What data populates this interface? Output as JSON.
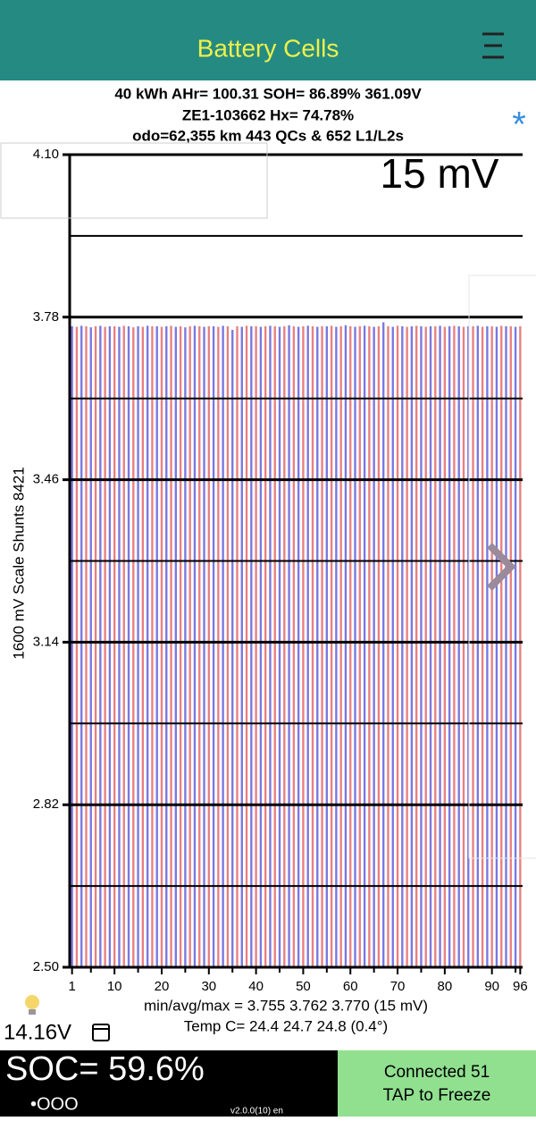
{
  "header": {
    "title": "Battery Cells"
  },
  "info": {
    "lines": [
      "40 kWh  AHr= 100.31  SOH= 86.89%   361.09V",
      "ZE1-103662   Hx= 74.78%",
      "odo=62,355 km 443 QCs & 652 L1/L2s"
    ]
  },
  "chart_data": {
    "type": "bar",
    "annotation": "15 mV",
    "y_label": "1600 mV Scale   Shunts 8421",
    "x": [
      1,
      2,
      3,
      4,
      5,
      6,
      7,
      8,
      9,
      10,
      11,
      12,
      13,
      14,
      15,
      16,
      17,
      18,
      19,
      20,
      21,
      22,
      23,
      24,
      25,
      26,
      27,
      28,
      29,
      30,
      31,
      32,
      33,
      34,
      35,
      36,
      37,
      38,
      39,
      40,
      41,
      42,
      43,
      44,
      45,
      46,
      47,
      48,
      49,
      50,
      51,
      52,
      53,
      54,
      55,
      56,
      57,
      58,
      59,
      60,
      61,
      62,
      63,
      64,
      65,
      66,
      67,
      68,
      69,
      70,
      71,
      72,
      73,
      74,
      75,
      76,
      77,
      78,
      79,
      80,
      81,
      82,
      83,
      84,
      85,
      86,
      87,
      88,
      89,
      90,
      91,
      92,
      93,
      94,
      95,
      96
    ],
    "values": [
      3.762,
      3.761,
      3.763,
      3.762,
      3.76,
      3.762,
      3.763,
      3.761,
      3.762,
      3.762,
      3.761,
      3.763,
      3.762,
      3.76,
      3.762,
      3.761,
      3.763,
      3.762,
      3.762,
      3.761,
      3.762,
      3.763,
      3.761,
      3.762,
      3.76,
      3.762,
      3.763,
      3.762,
      3.761,
      3.762,
      3.762,
      3.761,
      3.763,
      3.762,
      3.755,
      3.762,
      3.761,
      3.763,
      3.762,
      3.762,
      3.761,
      3.762,
      3.763,
      3.762,
      3.761,
      3.762,
      3.764,
      3.762,
      3.761,
      3.762,
      3.763,
      3.762,
      3.761,
      3.762,
      3.762,
      3.763,
      3.761,
      3.762,
      3.764,
      3.762,
      3.761,
      3.762,
      3.763,
      3.762,
      3.761,
      3.762,
      3.77,
      3.762,
      3.761,
      3.763,
      3.762,
      3.761,
      3.762,
      3.763,
      3.762,
      3.761,
      3.762,
      3.762,
      3.763,
      3.761,
      3.762,
      3.763,
      3.762,
      3.761,
      3.762,
      3.762,
      3.763,
      3.761,
      3.762,
      3.762,
      3.761,
      3.763,
      3.762,
      3.762,
      3.761,
      3.762
    ],
    "bar_colors": [
      "#7878e0",
      "#e88080"
    ],
    "xlim": [
      0.5,
      96.5
    ],
    "xticks": [
      1,
      10,
      20,
      30,
      40,
      50,
      60,
      70,
      80,
      90,
      96
    ],
    "minor_xticks": [
      5,
      15,
      25,
      35,
      45,
      55,
      65,
      75,
      85,
      95
    ],
    "ylim": [
      2.5,
      4.1
    ],
    "yticks": [
      {
        "value": 4.1,
        "label": "4.10"
      },
      3.78,
      3.46,
      3.14,
      2.82,
      {
        "value": 2.5,
        "label": "2.50"
      }
    ],
    "minor_yticks": [
      3.94,
      3.62,
      3.3,
      2.98,
      2.66
    ],
    "grid": true
  },
  "stats": {
    "lines": [
      "min/avg/max = 3.755 3.762 3.770  (15 mV)",
      "Temp C= 24.4  24.7  24.8  (0.4°)"
    ]
  },
  "footer": {
    "aux_voltage": "14.16V",
    "soc": "SOC= 59.6%",
    "page_dots": "•OOO",
    "version": "v2.0.0(10) en",
    "status_lines": [
      "Connected 51",
      "TAP to Freeze"
    ]
  }
}
